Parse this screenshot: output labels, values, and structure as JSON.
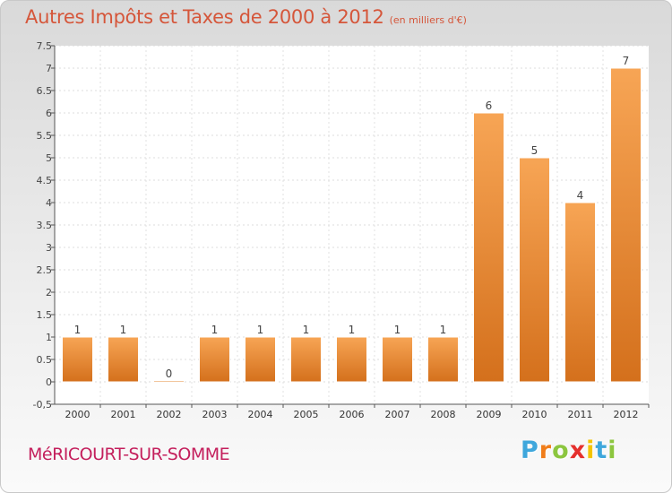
{
  "chart_data": {
    "type": "bar",
    "title": "Autres Impôts et Taxes de 2000 à 2012",
    "subtitle": "(en milliers d'€)",
    "categories": [
      "2000",
      "2001",
      "2002",
      "2003",
      "2004",
      "2005",
      "2006",
      "2007",
      "2008",
      "2009",
      "2010",
      "2011",
      "2012"
    ],
    "values": [
      1,
      1,
      0,
      1,
      1,
      1,
      1,
      1,
      1,
      6,
      5,
      4,
      7
    ],
    "data_labels": [
      "1",
      "1",
      "0",
      "1",
      "1",
      "1",
      "1",
      "1",
      "1",
      "6",
      "5",
      "4",
      "7"
    ],
    "ylim": [
      -0.5,
      7.5
    ],
    "yticks": [
      "-0,5",
      "0",
      "0.5",
      "1",
      "1.5",
      "2",
      "2.5",
      "3",
      "3.5",
      "4",
      "4.5",
      "5",
      "5.5",
      "6",
      "6.5",
      "7",
      "7.5"
    ],
    "ytick_values": [
      -0.5,
      0,
      0.5,
      1,
      1.5,
      2,
      2.5,
      3,
      3.5,
      4,
      4.5,
      5,
      5.5,
      6,
      6.5,
      7,
      7.5
    ],
    "grid": true,
    "bar_color_light": "#f7a555",
    "bar_color_dark": "#d4701c",
    "xlabel": "",
    "ylabel": ""
  },
  "footer": {
    "commune": "MéRICOURT-SUR-SOMME",
    "logo": [
      {
        "char": "P",
        "color": "#3fa7dc"
      },
      {
        "char": "r",
        "color": "#f07d1a"
      },
      {
        "char": "o",
        "color": "#8cc63f"
      },
      {
        "char": "x",
        "color": "#e5302d"
      },
      {
        "char": "i",
        "color": "#f4c400"
      },
      {
        "char": "t",
        "color": "#3fa7dc"
      },
      {
        "char": "i",
        "color": "#8cc63f"
      }
    ]
  }
}
